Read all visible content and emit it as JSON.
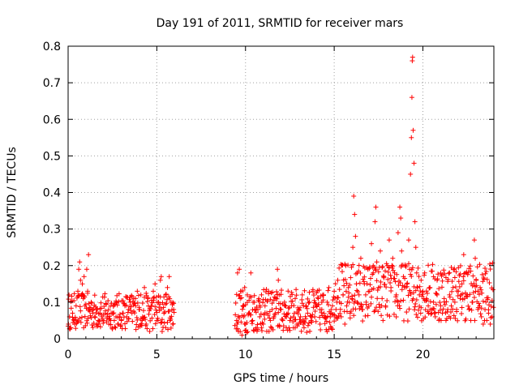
{
  "chart_data": {
    "type": "scatter",
    "title": "Day 191 of 2011, SRMTID for receiver mars",
    "xlabel": "GPS time / hours",
    "ylabel": "SRMTID / TECUs",
    "xlim": [
      0,
      24
    ],
    "ylim": [
      0,
      0.8
    ],
    "xticks": [
      0,
      5,
      10,
      15,
      20
    ],
    "yticks": [
      0,
      0.1,
      0.2,
      0.3,
      0.4,
      0.5,
      0.6,
      0.7,
      0.8
    ],
    "xtick_labels": [
      "0",
      "5",
      "10",
      "15",
      "20"
    ],
    "ytick_labels": [
      "0",
      "0.1",
      "0.2",
      "0.3",
      "0.4",
      "0.5",
      "0.6",
      "0.7",
      "0.8"
    ],
    "grid": true,
    "marker": "+",
    "series_color": "#ff0000",
    "series": [
      {
        "name": "SRMTID",
        "segments": [
          {
            "x_start": 0.0,
            "x_end": 6.0,
            "base": 0.07,
            "spread": 0.05
          },
          {
            "x_start": 9.4,
            "x_end": 15.0,
            "base": 0.07,
            "spread": 0.06
          },
          {
            "x_start": 15.0,
            "x_end": 24.0,
            "base": 0.12,
            "spread": 0.08
          }
        ],
        "points": [
          [
            0.02,
            0.04
          ],
          [
            0.08,
            0.06
          ],
          [
            0.15,
            0.03
          ],
          [
            0.25,
            0.07
          ],
          [
            0.35,
            0.05
          ],
          [
            0.45,
            0.09
          ],
          [
            0.55,
            0.13
          ],
          [
            0.6,
            0.19
          ],
          [
            0.65,
            0.21
          ],
          [
            0.7,
            0.16
          ],
          [
            0.75,
            0.12
          ],
          [
            0.8,
            0.15
          ],
          [
            0.85,
            0.11
          ],
          [
            0.9,
            0.17
          ],
          [
            0.95,
            0.09
          ],
          [
            1.05,
            0.19
          ],
          [
            1.1,
            0.13
          ],
          [
            1.15,
            0.23
          ],
          [
            1.2,
            0.08
          ],
          [
            1.3,
            0.1
          ],
          [
            1.4,
            0.07
          ],
          [
            1.5,
            0.06
          ],
          [
            1.6,
            0.08
          ],
          [
            1.7,
            0.05
          ],
          [
            1.8,
            0.07
          ],
          [
            1.9,
            0.06
          ],
          [
            2.0,
            0.05
          ],
          [
            2.1,
            0.07
          ],
          [
            2.2,
            0.06
          ],
          [
            2.3,
            0.04
          ],
          [
            2.4,
            0.05
          ],
          [
            2.5,
            0.07
          ],
          [
            2.6,
            0.05
          ],
          [
            2.7,
            0.06
          ],
          [
            2.8,
            0.04
          ],
          [
            2.9,
            0.06
          ],
          [
            3.0,
            0.05
          ],
          [
            3.1,
            0.07
          ],
          [
            3.2,
            0.09
          ],
          [
            3.3,
            0.06
          ],
          [
            3.4,
            0.08
          ],
          [
            3.5,
            0.1
          ],
          [
            3.6,
            0.07
          ],
          [
            3.7,
            0.11
          ],
          [
            3.8,
            0.09
          ],
          [
            3.9,
            0.13
          ],
          [
            4.0,
            0.08
          ],
          [
            4.1,
            0.12
          ],
          [
            4.2,
            0.06
          ],
          [
            4.3,
            0.14
          ],
          [
            4.4,
            0.04
          ],
          [
            4.5,
            0.11
          ],
          [
            4.6,
            0.02
          ],
          [
            4.7,
            0.09
          ],
          [
            4.8,
            0.13
          ],
          [
            4.9,
            0.15
          ],
          [
            5.0,
            0.05
          ],
          [
            5.1,
            0.1
          ],
          [
            5.2,
            0.16
          ],
          [
            5.25,
            0.17
          ],
          [
            5.3,
            0.02
          ],
          [
            5.4,
            0.07
          ],
          [
            5.5,
            0.12
          ],
          [
            5.6,
            0.14
          ],
          [
            5.7,
            0.17
          ],
          [
            5.75,
            0.05
          ],
          [
            5.8,
            0.1
          ],
          [
            5.9,
            0.04
          ],
          [
            5.95,
            0.08
          ],
          [
            9.5,
            0.05
          ],
          [
            9.55,
            0.18
          ],
          [
            9.6,
            0.02
          ],
          [
            9.65,
            0.19
          ],
          [
            9.7,
            0.11
          ],
          [
            9.75,
            0.13
          ],
          [
            9.8,
            0.01
          ],
          [
            9.85,
            0.09
          ],
          [
            9.9,
            0.06
          ],
          [
            9.95,
            0.14
          ],
          [
            10.0,
            0.04
          ],
          [
            10.1,
            0.12
          ],
          [
            10.2,
            0.07
          ],
          [
            10.3,
            0.18
          ],
          [
            10.4,
            0.05
          ],
          [
            10.5,
            0.1
          ],
          [
            10.6,
            0.03
          ],
          [
            10.7,
            0.08
          ],
          [
            10.8,
            0.06
          ],
          [
            10.9,
            0.12
          ],
          [
            11.0,
            0.04
          ],
          [
            11.1,
            0.09
          ],
          [
            11.2,
            0.07
          ],
          [
            11.3,
            0.13
          ],
          [
            11.4,
            0.05
          ],
          [
            11.5,
            0.08
          ],
          [
            11.6,
            0.06
          ],
          [
            11.7,
            0.11
          ],
          [
            11.8,
            0.19
          ],
          [
            11.85,
            0.16
          ],
          [
            11.9,
            0.12
          ],
          [
            12.0,
            0.08
          ],
          [
            12.1,
            0.05
          ],
          [
            12.2,
            0.1
          ],
          [
            12.3,
            0.03
          ],
          [
            12.4,
            0.07
          ],
          [
            12.5,
            0.05
          ],
          [
            12.6,
            0.09
          ],
          [
            12.7,
            0.06
          ],
          [
            12.8,
            0.11
          ],
          [
            12.9,
            0.04
          ],
          [
            13.0,
            0.08
          ],
          [
            13.1,
            0.06
          ],
          [
            13.2,
            0.12
          ],
          [
            13.3,
            0.03
          ],
          [
            13.4,
            0.09
          ],
          [
            13.5,
            0.07
          ],
          [
            13.6,
            0.1
          ],
          [
            13.7,
            0.05
          ],
          [
            13.8,
            0.13
          ],
          [
            13.9,
            0.06
          ],
          [
            14.0,
            0.09
          ],
          [
            14.1,
            0.11
          ],
          [
            14.2,
            0.04
          ],
          [
            14.3,
            0.08
          ],
          [
            14.4,
            0.12
          ],
          [
            14.5,
            0.06
          ],
          [
            14.6,
            0.1
          ],
          [
            14.7,
            0.14
          ],
          [
            14.8,
            0.07
          ],
          [
            14.9,
            0.09
          ],
          [
            15.0,
            0.13
          ],
          [
            15.1,
            0.08
          ],
          [
            15.2,
            0.16
          ],
          [
            15.3,
            0.1
          ],
          [
            15.4,
            0.06
          ],
          [
            15.5,
            0.12
          ],
          [
            15.6,
            0.04
          ],
          [
            15.7,
            0.09
          ],
          [
            15.8,
            0.14
          ],
          [
            15.9,
            0.07
          ],
          [
            16.0,
            0.11
          ],
          [
            16.05,
            0.25
          ],
          [
            16.1,
            0.39
          ],
          [
            16.15,
            0.34
          ],
          [
            16.2,
            0.28
          ],
          [
            16.3,
            0.18
          ],
          [
            16.4,
            0.12
          ],
          [
            16.5,
            0.22
          ],
          [
            16.6,
            0.08
          ],
          [
            16.7,
            0.15
          ],
          [
            16.8,
            0.1
          ],
          [
            16.9,
            0.19
          ],
          [
            17.0,
            0.13
          ],
          [
            17.1,
            0.26
          ],
          [
            17.2,
            0.18
          ],
          [
            17.3,
            0.32
          ],
          [
            17.35,
            0.36
          ],
          [
            17.4,
            0.21
          ],
          [
            17.5,
            0.14
          ],
          [
            17.6,
            0.24
          ],
          [
            17.7,
            0.11
          ],
          [
            17.8,
            0.17
          ],
          [
            17.9,
            0.09
          ],
          [
            18.0,
            0.2
          ],
          [
            18.1,
            0.27
          ],
          [
            18.2,
            0.14
          ],
          [
            18.3,
            0.22
          ],
          [
            18.4,
            0.18
          ],
          [
            18.5,
            0.12
          ],
          [
            18.6,
            0.29
          ],
          [
            18.7,
            0.36
          ],
          [
            18.75,
            0.33
          ],
          [
            18.8,
            0.24
          ],
          [
            18.9,
            0.17
          ],
          [
            19.0,
            0.2
          ],
          [
            19.1,
            0.15
          ],
          [
            19.2,
            0.27
          ],
          [
            19.25,
            0.19
          ],
          [
            19.3,
            0.45
          ],
          [
            19.35,
            0.55
          ],
          [
            19.38,
            0.66
          ],
          [
            19.4,
            0.76
          ],
          [
            19.42,
            0.77
          ],
          [
            19.45,
            0.57
          ],
          [
            19.5,
            0.48
          ],
          [
            19.55,
            0.32
          ],
          [
            19.6,
            0.25
          ],
          [
            19.65,
            0.18
          ],
          [
            19.7,
            0.14
          ],
          [
            19.8,
            0.12
          ],
          [
            19.9,
            0.16
          ],
          [
            20.0,
            0.13
          ],
          [
            20.1,
            0.18
          ],
          [
            20.2,
            0.11
          ],
          [
            20.3,
            0.09
          ],
          [
            20.4,
            0.14
          ],
          [
            20.5,
            0.07
          ],
          [
            20.6,
            0.1
          ],
          [
            20.7,
            0.06
          ],
          [
            20.8,
            0.12
          ],
          [
            20.9,
            0.05
          ],
          [
            21.0,
            0.09
          ],
          [
            21.1,
            0.07
          ],
          [
            21.2,
            0.11
          ],
          [
            21.3,
            0.05
          ],
          [
            21.4,
            0.08
          ],
          [
            21.5,
            0.12
          ],
          [
            21.6,
            0.09
          ],
          [
            21.7,
            0.14
          ],
          [
            21.8,
            0.1
          ],
          [
            21.9,
            0.08
          ],
          [
            22.0,
            0.13
          ],
          [
            22.1,
            0.11
          ],
          [
            22.2,
            0.15
          ],
          [
            22.3,
            0.23
          ],
          [
            22.4,
            0.18
          ],
          [
            22.5,
            0.12
          ],
          [
            22.6,
            0.08
          ],
          [
            22.7,
            0.05
          ],
          [
            22.8,
            0.1
          ],
          [
            22.9,
            0.27
          ],
          [
            22.95,
            0.22
          ],
          [
            23.0,
            0.16
          ],
          [
            23.1,
            0.13
          ],
          [
            23.2,
            0.09
          ],
          [
            23.3,
            0.06
          ],
          [
            23.4,
            0.04
          ],
          [
            23.5,
            0.08
          ],
          [
            23.6,
            0.05
          ],
          [
            23.7,
            0.07
          ],
          [
            23.8,
            0.04
          ],
          [
            23.9,
            0.06
          ]
        ]
      }
    ]
  }
}
